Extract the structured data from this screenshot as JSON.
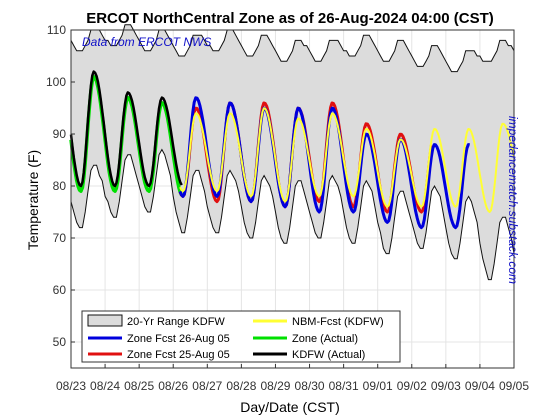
{
  "chart_data": {
    "type": "line",
    "title": "ERCOT NorthCentral Zone as of 26-Aug-2024 04:00 (CST)",
    "xlabel": "Day/Date (CST)",
    "ylabel": "Temperature (F)",
    "annotation_left": "Data from ERCOT NWS",
    "annotation_right": "impedancematch.substack.com",
    "ylim": [
      45,
      110
    ],
    "yticks": [
      50,
      60,
      70,
      80,
      90,
      100,
      110
    ],
    "xlim": [
      0,
      13
    ],
    "xticks": [
      0,
      1,
      2,
      3,
      4,
      5,
      6,
      7,
      8,
      9,
      10,
      11,
      12,
      13
    ],
    "xtick_labels": [
      "08/23",
      "08/24",
      "08/25",
      "08/26",
      "08/27",
      "08/28",
      "08/29",
      "08/30",
      "08/31",
      "09/01",
      "09/02",
      "09/03",
      "09/04",
      "09/05"
    ],
    "grid": true,
    "legend_position": "bottom-left",
    "legend": [
      {
        "label": "20-Yr Range KDFW",
        "kind": "band",
        "color": "#dcdcdc"
      },
      {
        "label": "Zone Fcst 26-Aug 05",
        "kind": "line",
        "color": "#0000dd"
      },
      {
        "label": "Zone Fcst 25-Aug 05",
        "kind": "line",
        "color": "#e01010"
      },
      {
        "label": "NBM-Fcst (KDFW)",
        "kind": "line",
        "color": "#ffff33"
      },
      {
        "label": "Zone (Actual)",
        "kind": "line",
        "color": "#00e000"
      },
      {
        "label": "KDFW (Actual)",
        "kind": "line",
        "color": "#000000"
      }
    ],
    "range_band": {
      "days": [
        0,
        1,
        2,
        3,
        4,
        5,
        6,
        7,
        8,
        9,
        10,
        11,
        12
      ],
      "min_low": [
        72,
        74,
        75,
        71,
        71,
        70,
        69,
        70,
        69,
        67,
        68,
        66,
        62
      ],
      "max_high": [
        108,
        109,
        108,
        107,
        108,
        107,
        106,
        106,
        107,
        106,
        105,
        104,
        106
      ]
    },
    "series": [
      {
        "name": "KDFW (Actual)",
        "color": "#000000",
        "width": 2.5,
        "start": 0,
        "end": 3.25,
        "lows": [
          80,
          80,
          80,
          80
        ],
        "highs": [
          102,
          98,
          97
        ]
      },
      {
        "name": "Zone (Actual)",
        "color": "#00e000",
        "width": 3.5,
        "start": 0,
        "end": 3.25,
        "lows": [
          79,
          79,
          79,
          78
        ],
        "highs": [
          101,
          97,
          96
        ]
      },
      {
        "name": "Zone Fcst 25-Aug 05",
        "color": "#e01010",
        "width": 3,
        "start": 3.2,
        "end": 10.6,
        "lows": [
          78,
          77,
          77,
          76,
          77,
          76,
          75,
          75
        ],
        "highs": [
          95,
          96,
          96,
          95,
          96,
          92,
          90
        ]
      },
      {
        "name": "Zone Fcst 26-Aug 05",
        "color": "#0000dd",
        "width": 3,
        "start": 3.2,
        "end": 11.7,
        "lows": [
          78,
          78,
          77,
          76,
          75,
          75,
          73,
          72,
          72
        ],
        "highs": [
          97,
          96,
          95,
          95,
          95,
          90,
          89,
          88
        ]
      },
      {
        "name": "NBM-Fcst (KDFW)",
        "color": "#ffff33",
        "width": 2,
        "start": 3.2,
        "end": 13,
        "lows": [
          79,
          79,
          78,
          77,
          78,
          78,
          76,
          76,
          76,
          75,
          80
        ],
        "highs": [
          94,
          94,
          95,
          93,
          94,
          91,
          89,
          91,
          91,
          92
        ]
      }
    ]
  }
}
